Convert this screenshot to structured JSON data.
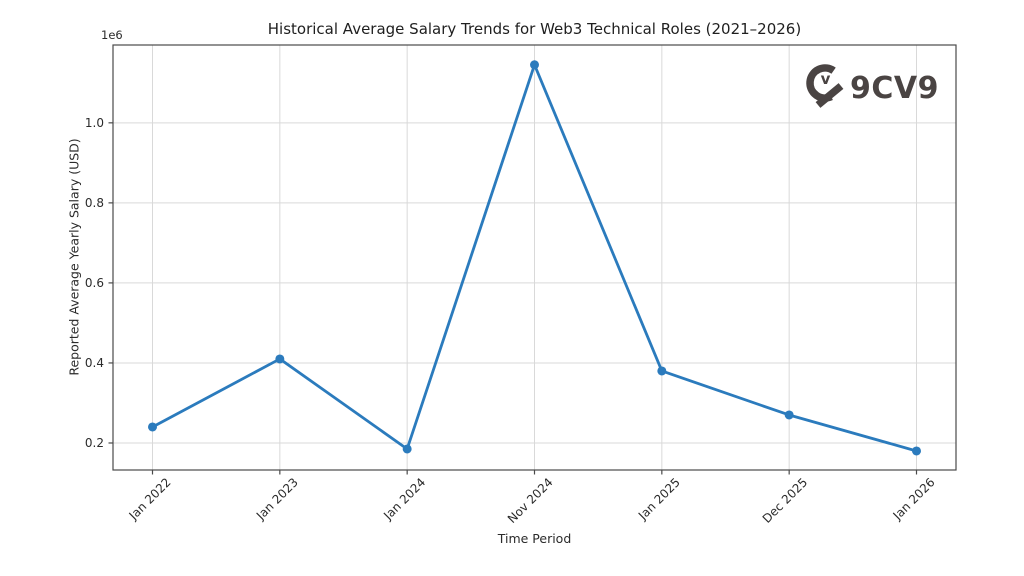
{
  "logo": {
    "text": "9CV9",
    "color": "#4a4443"
  },
  "chart_data": {
    "type": "line",
    "title": "Historical Average Salary Trends for Web3 Technical Roles (2021–2026)",
    "xlabel": "Time Period",
    "ylabel": "Reported Average Yearly Salary (USD)",
    "offset_text": "1e6",
    "categories": [
      "Jan 2022",
      "Jan 2023",
      "Jan 2024",
      "Nov 2024",
      "Jan 2025",
      "Dec 2025",
      "Jan 2026"
    ],
    "values": [
      240000,
      410000,
      185000,
      1145000,
      380000,
      270000,
      180000
    ],
    "ylim": [
      132500,
      1194500
    ],
    "yticks": [
      200000,
      400000,
      600000,
      800000,
      1000000
    ],
    "ytick_labels": [
      "0.2",
      "0.4",
      "0.6",
      "0.8",
      "1.0"
    ],
    "x_tick_rotation_deg": 45,
    "grid": true,
    "legend_position": "none",
    "line_color": "#2b7bbd",
    "marker": "circle",
    "grid_color": "#d9d9d9",
    "spine_color": "#4a4a4a",
    "tick_text_color": "#2b2b2b"
  }
}
